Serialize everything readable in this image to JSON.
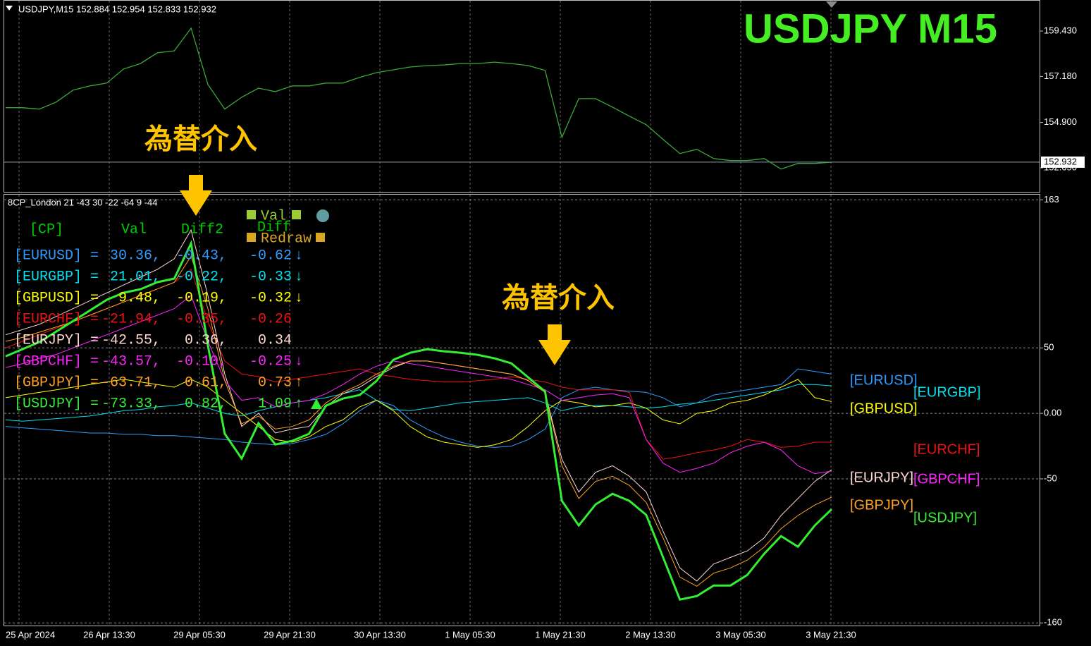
{
  "chart_data": [
    {
      "type": "line",
      "header": "USDJPY,M15  152.884 152.954 152.833 152.932",
      "title": "USDJPY  M15",
      "color": "#3aa83a",
      "values": [
        155.63,
        155.63,
        155.56,
        155.91,
        156.5,
        156.71,
        156.85,
        157.55,
        157.82,
        158.35,
        158.45,
        159.57,
        156.78,
        155.56,
        156.15,
        156.6,
        156.43,
        156.71,
        156.71,
        156.85,
        156.85,
        157.13,
        157.37,
        157.51,
        157.65,
        157.72,
        157.75,
        157.82,
        157.82,
        157.89,
        157.82,
        157.72,
        157.48,
        154.16,
        156.08,
        156.08,
        155.66,
        155.21,
        154.79,
        154.06,
        153.36,
        153.57,
        153.11,
        153.01,
        153.01,
        153.11,
        152.59,
        152.87,
        152.87,
        152.93
      ],
      "ylim": [
        151.46,
        160.97
      ],
      "yticks": [
        {
          "value": 159.43,
          "label": "159.430"
        },
        {
          "value": 157.18,
          "label": "157.180"
        },
        {
          "value": 154.9,
          "label": "154.900"
        },
        {
          "value": 152.65,
          "label": "152.650"
        }
      ],
      "last_value": {
        "value": 152.932,
        "label": "152.932"
      }
    },
    {
      "type": "line",
      "title": "8CP_London 21 -43 30 -22 -64 9 -44",
      "time_labels": [
        "25 Apr 2024",
        "26 Apr 13:30",
        "29 Apr 05:30",
        "29 Apr 21:30",
        "30 Apr 13:30",
        "1 May 05:30",
        "1 May 21:30",
        "2 May 13:30",
        "3 May 05:30",
        "3 May 21:30"
      ],
      "ylim": [
        -162,
        167
      ],
      "yticks": [
        163,
        50,
        {
          "value": 0,
          "label": "0.00"
        },
        -50,
        -160
      ],
      "grid": true,
      "series": [
        {
          "name": "[EURUSD]",
          "color": "#2e9bff",
          "values": [
            -10,
            -11,
            -12,
            -13,
            -14,
            -15,
            -15,
            -16,
            -16,
            -17,
            -17,
            -18,
            -19,
            -20,
            -22,
            -23,
            -24,
            -23,
            -20,
            -16,
            -8,
            2,
            10,
            6,
            -5,
            -12,
            -18,
            -22,
            -25,
            -26,
            -25,
            -20,
            -12,
            12,
            18,
            20,
            18,
            17,
            16,
            12,
            5,
            8,
            14,
            16,
            18,
            20,
            22,
            34,
            32,
            30
          ]
        },
        {
          "name": "[EURGBP]",
          "color": "#00e0ee",
          "values": [
            -5,
            -6,
            -5,
            -4,
            -3,
            -2,
            0,
            2,
            3,
            5,
            6,
            8,
            4,
            0,
            -2,
            2,
            5,
            8,
            10,
            12,
            15,
            18,
            10,
            3,
            2,
            4,
            6,
            8,
            9,
            10,
            11,
            12,
            8,
            2,
            5,
            6,
            6,
            5,
            4,
            5,
            7,
            8,
            10,
            12,
            14,
            16,
            18,
            22,
            22,
            21
          ]
        },
        {
          "name": "[GBPUSD]",
          "color": "#ffff00",
          "values": [
            12,
            14,
            16,
            18,
            20,
            22,
            24,
            26,
            24,
            22,
            20,
            26,
            20,
            10,
            0,
            -10,
            -20,
            -22,
            -18,
            -10,
            -5,
            5,
            10,
            2,
            -10,
            -18,
            -22,
            -24,
            -26,
            -24,
            -20,
            -10,
            2,
            10,
            8,
            5,
            6,
            8,
            4,
            -5,
            -8,
            0,
            2,
            8,
            10,
            14,
            20,
            26,
            12,
            9
          ]
        },
        {
          "name": "[EURCHF]",
          "color": "#ee1111",
          "values": [
            50,
            55,
            60,
            65,
            70,
            75,
            80,
            85,
            90,
            95,
            100,
            110,
            70,
            40,
            30,
            28,
            24,
            26,
            28,
            30,
            32,
            34,
            30,
            28,
            26,
            25,
            24,
            24,
            25,
            26,
            28,
            26,
            24,
            20,
            18,
            18,
            18,
            16,
            -20,
            -35,
            -33,
            -30,
            -28,
            -25,
            -20,
            -22,
            -26,
            -25,
            -22,
            -22
          ]
        },
        {
          "name": "[EURJPY]",
          "color": "#ffd8d0",
          "values": [
            60,
            64,
            68,
            74,
            80,
            86,
            92,
            98,
            104,
            110,
            118,
            140,
            90,
            30,
            -10,
            0,
            -15,
            -12,
            -10,
            5,
            15,
            20,
            28,
            35,
            40,
            40,
            38,
            36,
            34,
            32,
            30,
            25,
            16,
            -35,
            -60,
            -45,
            -40,
            -48,
            -60,
            -90,
            -118,
            -128,
            -115,
            -110,
            -105,
            -95,
            -78,
            -65,
            -52,
            -43
          ]
        },
        {
          "name": "[GBPCHF]",
          "color": "#ff22ff",
          "values": [
            35,
            38,
            42,
            45,
            50,
            55,
            60,
            65,
            70,
            75,
            80,
            90,
            55,
            25,
            10,
            12,
            5,
            8,
            10,
            15,
            22,
            30,
            36,
            40,
            38,
            36,
            34,
            32,
            30,
            28,
            26,
            22,
            18,
            10,
            12,
            14,
            15,
            12,
            -20,
            -38,
            -45,
            -42,
            -38,
            -30,
            -25,
            -22,
            -28,
            -40,
            -46,
            -44
          ]
        },
        {
          "name": "[GBPJPY]",
          "color": "#ffa020",
          "values": [
            55,
            58,
            62,
            66,
            70,
            75,
            80,
            85,
            90,
            95,
            100,
            120,
            80,
            25,
            -8,
            -2,
            -12,
            -10,
            -5,
            8,
            16,
            22,
            30,
            36,
            40,
            40,
            38,
            36,
            34,
            32,
            30,
            25,
            16,
            -40,
            -65,
            -52,
            -48,
            -55,
            -68,
            -95,
            -125,
            -132,
            -122,
            -118,
            -112,
            -102,
            -88,
            -78,
            -70,
            -64
          ]
        },
        {
          "name": "[USDJPY]",
          "color": "#33ee33",
          "values": [
            43.6,
            49.0,
            54.4,
            62.5,
            70.5,
            78.6,
            86.7,
            92.1,
            94.8,
            100.2,
            102.9,
            129.8,
            51.7,
            -15.6,
            -34.5,
            -7.5,
            -23.7,
            -21.0,
            -15.6,
            5.9,
            11.3,
            14.0,
            24.8,
            40.9,
            46.3,
            49.0,
            47.4,
            46.3,
            44.7,
            42.0,
            38.2,
            27.5,
            16.7,
            -66.8,
            -85.6,
            -69.5,
            -61.4,
            -66.8,
            -77.5,
            -109.9,
            -142.2,
            -139.5,
            -131.4,
            -131.4,
            -123.3,
            -107.2,
            -93.7,
            -101.8,
            -85.6,
            -73.2
          ]
        }
      ],
      "annotations": [
        "為替介入",
        "為替介入"
      ],
      "table": {
        "header": [
          "[CP]",
          "Val",
          "Diff2"
        ],
        "rows": [
          [
            "[EURUSD] =",
            "30.36,",
            "-0.43,",
            "-0.62",
            "↓"
          ],
          [
            "[EURGBP] =",
            "21.01,",
            "-0.22,",
            "-0.33",
            "↓"
          ],
          [
            "[GBPUSD] =",
            "9.48,",
            "-0.19,",
            "-0.32",
            "↓"
          ],
          [
            "[EURCHF] =",
            "-21.94,",
            "-0.35,",
            "-0.26"
          ],
          [
            "[EURJPY] =",
            "-42.55,",
            "0.36,",
            "0.34"
          ],
          [
            "[GBPCHF] =",
            "-43.57,",
            "-0.10,",
            "-0.25",
            "↓"
          ],
          [
            "[GBPJPY] =",
            "-63.71,",
            "0.61,",
            "0.73",
            "↑"
          ],
          [
            "[USDJPY] =",
            "-73.33,",
            "0.82,",
            "1.09",
            "↑"
          ]
        ]
      },
      "controls": [
        "Val",
        "Diff",
        "Redraw"
      ]
    }
  ]
}
